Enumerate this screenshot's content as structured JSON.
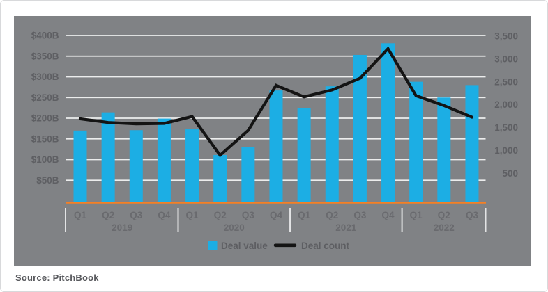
{
  "chart_data": {
    "type": "bar+line combo (dual axis)",
    "title": "",
    "x_groups": [
      {
        "year": "2019",
        "quarters": [
          "Q1",
          "Q2",
          "Q3",
          "Q4"
        ]
      },
      {
        "year": "2020",
        "quarters": [
          "Q1",
          "Q2",
          "Q3",
          "Q4"
        ]
      },
      {
        "year": "2021",
        "quarters": [
          "Q1",
          "Q2",
          "Q3",
          "Q4"
        ]
      },
      {
        "year": "2022",
        "quarters": [
          "Q1",
          "Q2",
          "Q3"
        ]
      }
    ],
    "series": [
      {
        "name": "Deal value",
        "type": "bar",
        "axis": "left",
        "unit": "USD billions",
        "color": "#1CAEE4",
        "values": [
          170,
          214,
          171,
          199,
          173,
          111,
          131,
          267,
          224,
          277,
          353,
          381,
          288,
          250,
          280
        ]
      },
      {
        "name": "Deal count",
        "type": "line",
        "axis": "right",
        "unit": "deals",
        "color": "#141414",
        "values": [
          1690,
          1610,
          1580,
          1590,
          1740,
          895,
          1435,
          2420,
          2170,
          2320,
          2575,
          3220,
          2195,
          1980,
          1725
        ]
      }
    ],
    "left_axis": {
      "tick_labels": [
        "$400B",
        "$350B",
        "$300B",
        "$250B",
        "$200B",
        "$150B",
        "$100B",
        "$50B"
      ],
      "tick_values": [
        400,
        350,
        300,
        250,
        200,
        150,
        100,
        50
      ],
      "range": [
        0,
        400
      ]
    },
    "right_axis": {
      "tick_labels": [
        "3,500",
        "3,000",
        "2,500",
        "2,000",
        "1,500",
        "1,000",
        "500"
      ],
      "tick_values": [
        3500,
        3000,
        2500,
        2000,
        1500,
        1000,
        500
      ],
      "range": [
        0,
        3500
      ]
    },
    "legend": [
      {
        "label": "Deal value",
        "marker": "cyan-square"
      },
      {
        "label": "Deal count",
        "marker": "black-line"
      }
    ],
    "layout_hints": {
      "panel_background": "#808285",
      "gridlines": "horizontal, white",
      "baseline_color": "#F58025",
      "legend_position": "bottom-center inside panel"
    }
  },
  "source_note": "Source: PitchBook"
}
